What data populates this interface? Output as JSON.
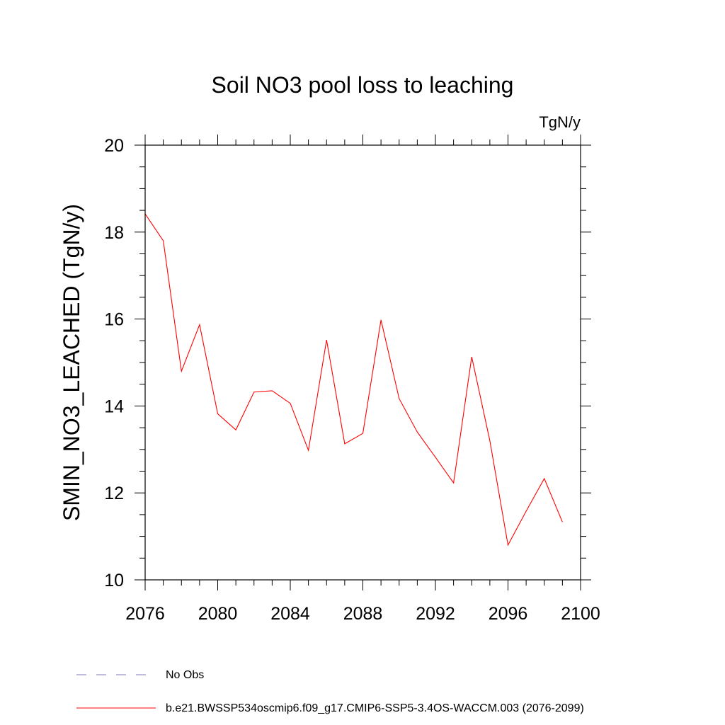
{
  "chart_data": {
    "type": "line",
    "title": "Soil NO3 pool loss to leaching",
    "units": "TgN/y",
    "ylabel": "SMIN_NO3_LEACHED  (TgN/y)",
    "xlabel": "",
    "xlim": [
      2076,
      2100
    ],
    "ylim": [
      10,
      20
    ],
    "xticks": [
      2076,
      2080,
      2084,
      2088,
      2092,
      2096,
      2100
    ],
    "yticks": [
      10,
      12,
      14,
      16,
      18,
      20
    ],
    "grid": false,
    "series": [
      {
        "name": "b.e21.BWSSP534oscmip6.f09_g17.CMIP6-SSP5-3.4OS-WACCM.003 (2076-2099)",
        "color": "#ff0000",
        "style": "solid",
        "x": [
          2076,
          2077,
          2078,
          2079,
          2080,
          2081,
          2082,
          2083,
          2084,
          2085,
          2086,
          2087,
          2088,
          2089,
          2090,
          2091,
          2092,
          2093,
          2094,
          2095,
          2096,
          2097,
          2098,
          2099
        ],
        "y": [
          18.42,
          17.8,
          14.8,
          15.87,
          13.82,
          13.45,
          14.32,
          14.35,
          14.06,
          12.98,
          15.52,
          13.13,
          13.37,
          15.98,
          14.17,
          13.4,
          12.82,
          12.23,
          15.13,
          13.2,
          10.8,
          11.58,
          12.33,
          11.33
        ]
      }
    ],
    "legend": {
      "position": "bottom",
      "entries": [
        {
          "label": "No Obs",
          "color": "#7f78b8",
          "style": "dashed"
        },
        {
          "label": "b.e21.BWSSP534oscmip6.f09_g17.CMIP6-SSP5-3.4OS-WACCM.003 (2076-2099)",
          "color": "#ff0000",
          "style": "solid"
        }
      ]
    }
  }
}
